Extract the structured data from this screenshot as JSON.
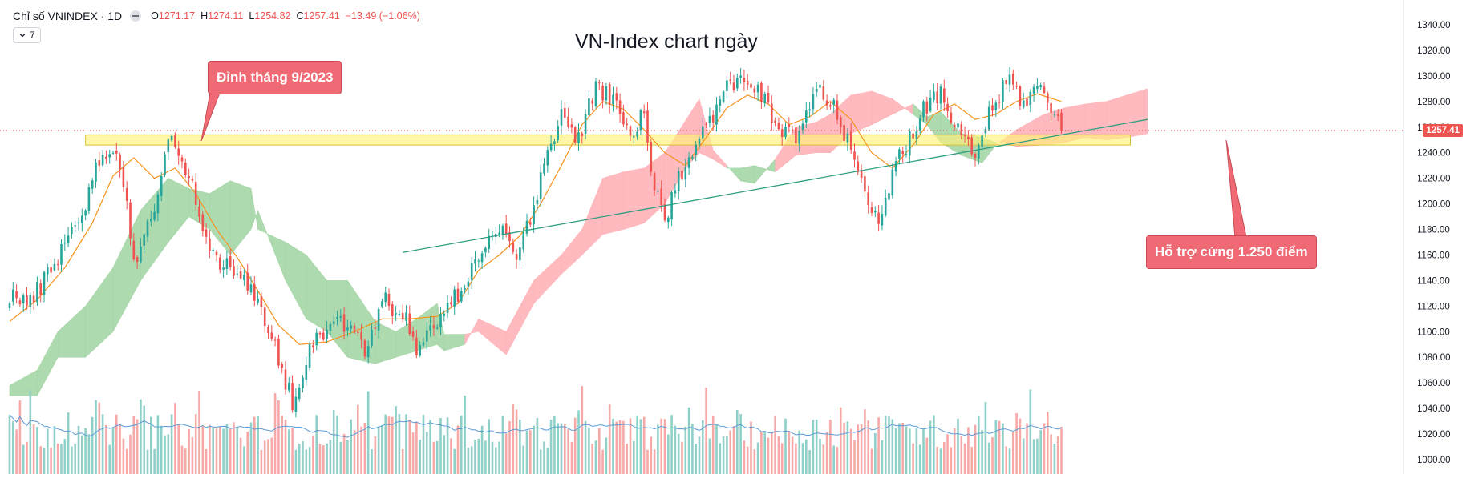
{
  "header": {
    "title": "Chỉ số VNINDEX · 1D",
    "open_label": "O",
    "open": "1271.17",
    "high_label": "H",
    "high": "1274.11",
    "low_label": "L",
    "low": "1254.82",
    "close_label": "C",
    "close": "1257.41",
    "change": "−13.49 (−1.06%)",
    "indicators_label": "7",
    "indicators_icon": "chevron-down-icon",
    "visibility_icon": "eye-toggle-icon"
  },
  "colors": {
    "up": "#26a69a",
    "down": "#ef5350",
    "vol_up": "#8fd0c8",
    "vol_down": "#f7a9a7",
    "ma": "#f7931e",
    "vol_ma": "#5b9bd5",
    "cloud_bull": "#a5d6a7",
    "cloud_bear": "#ffb3b8",
    "zone": "#fff176",
    "trendline": "#2e9e80",
    "callout": "#f06a75"
  },
  "chart_data": {
    "type": "candlestick",
    "title": "VN-Index chart ngày",
    "ylim": [
      1000,
      1340
    ],
    "y_ticks": [
      "1340.00",
      "1320.00",
      "1300.00",
      "1280.00",
      "1260.00",
      "1240.00",
      "1220.00",
      "1200.00",
      "1180.00",
      "1160.00",
      "1140.00",
      "1120.00",
      "1100.00",
      "1080.00",
      "1060.00",
      "1040.00",
      "1020.00",
      "1000.00"
    ],
    "last_price": "1257.41",
    "anchors": [
      {
        "i": 0,
        "c": 1130
      },
      {
        "i": 6,
        "c": 1122
      },
      {
        "i": 14,
        "c": 1160
      },
      {
        "i": 22,
        "c": 1200
      },
      {
        "i": 27,
        "c": 1243
      },
      {
        "i": 32,
        "c": 1235
      },
      {
        "i": 36,
        "c": 1155
      },
      {
        "i": 43,
        "c": 1205
      },
      {
        "i": 46,
        "c": 1250
      },
      {
        "i": 52,
        "c": 1225
      },
      {
        "i": 58,
        "c": 1160
      },
      {
        "i": 66,
        "c": 1150
      },
      {
        "i": 72,
        "c": 1120
      },
      {
        "i": 78,
        "c": 1080
      },
      {
        "i": 82,
        "c": 1045
      },
      {
        "i": 88,
        "c": 1095
      },
      {
        "i": 96,
        "c": 1110
      },
      {
        "i": 104,
        "c": 1085
      },
      {
        "i": 108,
        "c": 1125
      },
      {
        "i": 114,
        "c": 1115
      },
      {
        "i": 118,
        "c": 1085
      },
      {
        "i": 124,
        "c": 1108
      },
      {
        "i": 130,
        "c": 1130
      },
      {
        "i": 136,
        "c": 1160
      },
      {
        "i": 142,
        "c": 1180
      },
      {
        "i": 148,
        "c": 1160
      },
      {
        "i": 154,
        "c": 1220
      },
      {
        "i": 160,
        "c": 1275
      },
      {
        "i": 164,
        "c": 1245
      },
      {
        "i": 170,
        "c": 1290
      },
      {
        "i": 176,
        "c": 1278
      },
      {
        "i": 180,
        "c": 1250
      },
      {
        "i": 184,
        "c": 1275
      },
      {
        "i": 186,
        "c": 1220
      },
      {
        "i": 190,
        "c": 1185
      },
      {
        "i": 196,
        "c": 1235
      },
      {
        "i": 202,
        "c": 1262
      },
      {
        "i": 208,
        "c": 1290
      },
      {
        "i": 214,
        "c": 1300
      },
      {
        "i": 218,
        "c": 1285
      },
      {
        "i": 222,
        "c": 1260
      },
      {
        "i": 228,
        "c": 1250
      },
      {
        "i": 234,
        "c": 1290
      },
      {
        "i": 240,
        "c": 1270
      },
      {
        "i": 246,
        "c": 1225
      },
      {
        "i": 252,
        "c": 1188
      },
      {
        "i": 258,
        "c": 1235
      },
      {
        "i": 264,
        "c": 1270
      },
      {
        "i": 270,
        "c": 1285
      },
      {
        "i": 276,
        "c": 1250
      },
      {
        "i": 280,
        "c": 1238
      },
      {
        "i": 284,
        "c": 1270
      },
      {
        "i": 290,
        "c": 1298
      },
      {
        "i": 294,
        "c": 1278
      },
      {
        "i": 298,
        "c": 1292
      },
      {
        "i": 302,
        "c": 1278
      },
      {
        "i": 305,
        "c": 1257.41
      }
    ],
    "ma": [
      {
        "i": 0,
        "v": 1108
      },
      {
        "i": 8,
        "v": 1125
      },
      {
        "i": 16,
        "v": 1150
      },
      {
        "i": 24,
        "v": 1185
      },
      {
        "i": 30,
        "v": 1222
      },
      {
        "i": 36,
        "v": 1236
      },
      {
        "i": 42,
        "v": 1220
      },
      {
        "i": 48,
        "v": 1228
      },
      {
        "i": 54,
        "v": 1208
      },
      {
        "i": 60,
        "v": 1180
      },
      {
        "i": 66,
        "v": 1158
      },
      {
        "i": 72,
        "v": 1132
      },
      {
        "i": 78,
        "v": 1105
      },
      {
        "i": 84,
        "v": 1090
      },
      {
        "i": 92,
        "v": 1092
      },
      {
        "i": 100,
        "v": 1100
      },
      {
        "i": 108,
        "v": 1110
      },
      {
        "i": 116,
        "v": 1110
      },
      {
        "i": 124,
        "v": 1112
      },
      {
        "i": 130,
        "v": 1122
      },
      {
        "i": 136,
        "v": 1148
      },
      {
        "i": 142,
        "v": 1160
      },
      {
        "i": 148,
        "v": 1175
      },
      {
        "i": 154,
        "v": 1200
      },
      {
        "i": 160,
        "v": 1230
      },
      {
        "i": 166,
        "v": 1262
      },
      {
        "i": 172,
        "v": 1280
      },
      {
        "i": 178,
        "v": 1274
      },
      {
        "i": 184,
        "v": 1258
      },
      {
        "i": 190,
        "v": 1240
      },
      {
        "i": 196,
        "v": 1230
      },
      {
        "i": 202,
        "v": 1252
      },
      {
        "i": 208,
        "v": 1275
      },
      {
        "i": 214,
        "v": 1285
      },
      {
        "i": 220,
        "v": 1278
      },
      {
        "i": 226,
        "v": 1262
      },
      {
        "i": 232,
        "v": 1268
      },
      {
        "i": 238,
        "v": 1280
      },
      {
        "i": 244,
        "v": 1266
      },
      {
        "i": 250,
        "v": 1240
      },
      {
        "i": 256,
        "v": 1228
      },
      {
        "i": 262,
        "v": 1246
      },
      {
        "i": 268,
        "v": 1270
      },
      {
        "i": 274,
        "v": 1278
      },
      {
        "i": 280,
        "v": 1266
      },
      {
        "i": 286,
        "v": 1270
      },
      {
        "i": 292,
        "v": 1280
      },
      {
        "i": 298,
        "v": 1286
      },
      {
        "i": 305,
        "v": 1280
      }
    ],
    "cloud": [
      {
        "i": 0,
        "a": 1058,
        "b": 1050
      },
      {
        "i": 8,
        "a": 1070,
        "b": 1050
      },
      {
        "i": 14,
        "a": 1100,
        "b": 1080
      },
      {
        "i": 22,
        "a": 1120,
        "b": 1080
      },
      {
        "i": 30,
        "a": 1150,
        "b": 1100
      },
      {
        "i": 38,
        "a": 1195,
        "b": 1140
      },
      {
        "i": 46,
        "a": 1220,
        "b": 1170
      },
      {
        "i": 52,
        "a": 1212,
        "b": 1190
      },
      {
        "i": 58,
        "a": 1208,
        "b": 1180
      },
      {
        "i": 64,
        "a": 1218,
        "b": 1160
      },
      {
        "i": 70,
        "a": 1212,
        "b": 1180
      },
      {
        "i": 72,
        "a": 1180,
        "b": 1195
      },
      {
        "i": 80,
        "a": 1170,
        "b": 1140
      },
      {
        "i": 86,
        "a": 1160,
        "b": 1110
      },
      {
        "i": 92,
        "a": 1140,
        "b": 1100
      },
      {
        "i": 98,
        "a": 1140,
        "b": 1080
      },
      {
        "i": 106,
        "a": 1108,
        "b": 1075
      },
      {
        "i": 112,
        "a": 1100,
        "b": 1080
      },
      {
        "i": 118,
        "a": 1110,
        "b": 1085
      },
      {
        "i": 124,
        "a": 1122,
        "b": 1090
      },
      {
        "i": 126,
        "a": 1098,
        "b": 1085
      },
      {
        "i": 132,
        "a": 1098,
        "b": 1090
      },
      {
        "i": 136,
        "a": 1100,
        "b": 1110
      },
      {
        "i": 144,
        "a": 1082,
        "b": 1100
      },
      {
        "i": 152,
        "a": 1122,
        "b": 1140
      },
      {
        "i": 160,
        "a": 1145,
        "b": 1160
      },
      {
        "i": 166,
        "a": 1160,
        "b": 1180
      },
      {
        "i": 172,
        "a": 1176,
        "b": 1220
      },
      {
        "i": 178,
        "a": 1180,
        "b": 1225
      },
      {
        "i": 184,
        "a": 1185,
        "b": 1228
      },
      {
        "i": 190,
        "a": 1200,
        "b": 1240
      },
      {
        "i": 196,
        "a": 1228,
        "b": 1265
      },
      {
        "i": 200,
        "a": 1240,
        "b": 1282
      },
      {
        "i": 204,
        "a": 1235,
        "b": 1242
      },
      {
        "i": 208,
        "a": 1228,
        "b": 1230
      },
      {
        "i": 212,
        "a": 1228,
        "b": 1218
      },
      {
        "i": 216,
        "a": 1230,
        "b": 1216
      },
      {
        "i": 222,
        "a": 1225,
        "b": 1235
      },
      {
        "i": 228,
        "a": 1238,
        "b": 1260
      },
      {
        "i": 234,
        "a": 1240,
        "b": 1264
      },
      {
        "i": 238,
        "a": 1240,
        "b": 1270
      },
      {
        "i": 244,
        "a": 1255,
        "b": 1285
      },
      {
        "i": 250,
        "a": 1262,
        "b": 1288
      },
      {
        "i": 256,
        "a": 1270,
        "b": 1282
      },
      {
        "i": 262,
        "a": 1278,
        "b": 1270
      },
      {
        "i": 266,
        "a": 1268,
        "b": 1262
      },
      {
        "i": 270,
        "a": 1272,
        "b": 1248
      },
      {
        "i": 276,
        "a": 1255,
        "b": 1238
      },
      {
        "i": 282,
        "a": 1252,
        "b": 1232
      },
      {
        "i": 286,
        "a": 1248,
        "b": 1246
      },
      {
        "i": 292,
        "a": 1245,
        "b": 1258
      },
      {
        "i": 300,
        "a": 1246,
        "b": 1270
      },
      {
        "i": 306,
        "a": 1248,
        "b": 1275
      },
      {
        "i": 312,
        "a": 1252,
        "b": 1278
      },
      {
        "i": 318,
        "a": 1250,
        "b": 1280
      },
      {
        "i": 324,
        "a": 1252,
        "b": 1285
      },
      {
        "i": 330,
        "a": 1255,
        "b": 1290
      }
    ],
    "resistance_zone": {
      "from_i": 22,
      "to_i": 325,
      "top": 1254,
      "bottom": 1246
    },
    "trendline": {
      "from_i": 114,
      "from_y": 1162,
      "to_i": 330,
      "to_y": 1266
    },
    "volume": [],
    "volume_ma": []
  },
  "annotations": {
    "top_callout": "Đỉnh tháng 9/2023",
    "support_callout": "Hỗ trợ cứng 1.250 điểm"
  }
}
